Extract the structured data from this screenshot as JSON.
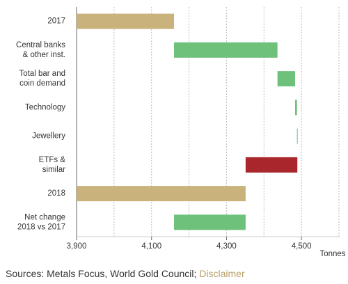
{
  "chart_data": {
    "type": "waterfall",
    "categories": [
      [
        "2017"
      ],
      [
        "Central banks",
        "& other inst."
      ],
      [
        "Total bar and",
        "coin demand"
      ],
      [
        "Technology"
      ],
      [
        "Jewellery"
      ],
      [
        "ETFs &",
        "similar"
      ],
      [
        "2018"
      ],
      [
        "Net change",
        "2018 vs 2017"
      ]
    ],
    "values": [
      4160,
      276,
      47,
      5,
      1,
      -138,
      4351,
      191
    ],
    "bar_kinds": [
      "total",
      "delta",
      "delta",
      "delta",
      "delta",
      "delta",
      "total",
      "net"
    ],
    "colors": {
      "total": "#c9b27c",
      "increase": "#6dc17b",
      "decrease": "#a8262c"
    },
    "xlim": [
      3900,
      4600
    ],
    "xticks": [
      {
        "value": 3900,
        "label": "3,900"
      },
      {
        "value": 4100,
        "label": "4,100"
      },
      {
        "value": 4300,
        "label": "4,300"
      },
      {
        "value": 4500,
        "label": "4,500"
      }
    ],
    "minor_xticks": [
      4000,
      4200,
      4400,
      4600
    ],
    "xlabel": "Tonnes",
    "grid": true
  },
  "footer": {
    "sources": "Sources: Metals Focus, World Gold Council;",
    "disclaimer": "Disclaimer"
  }
}
